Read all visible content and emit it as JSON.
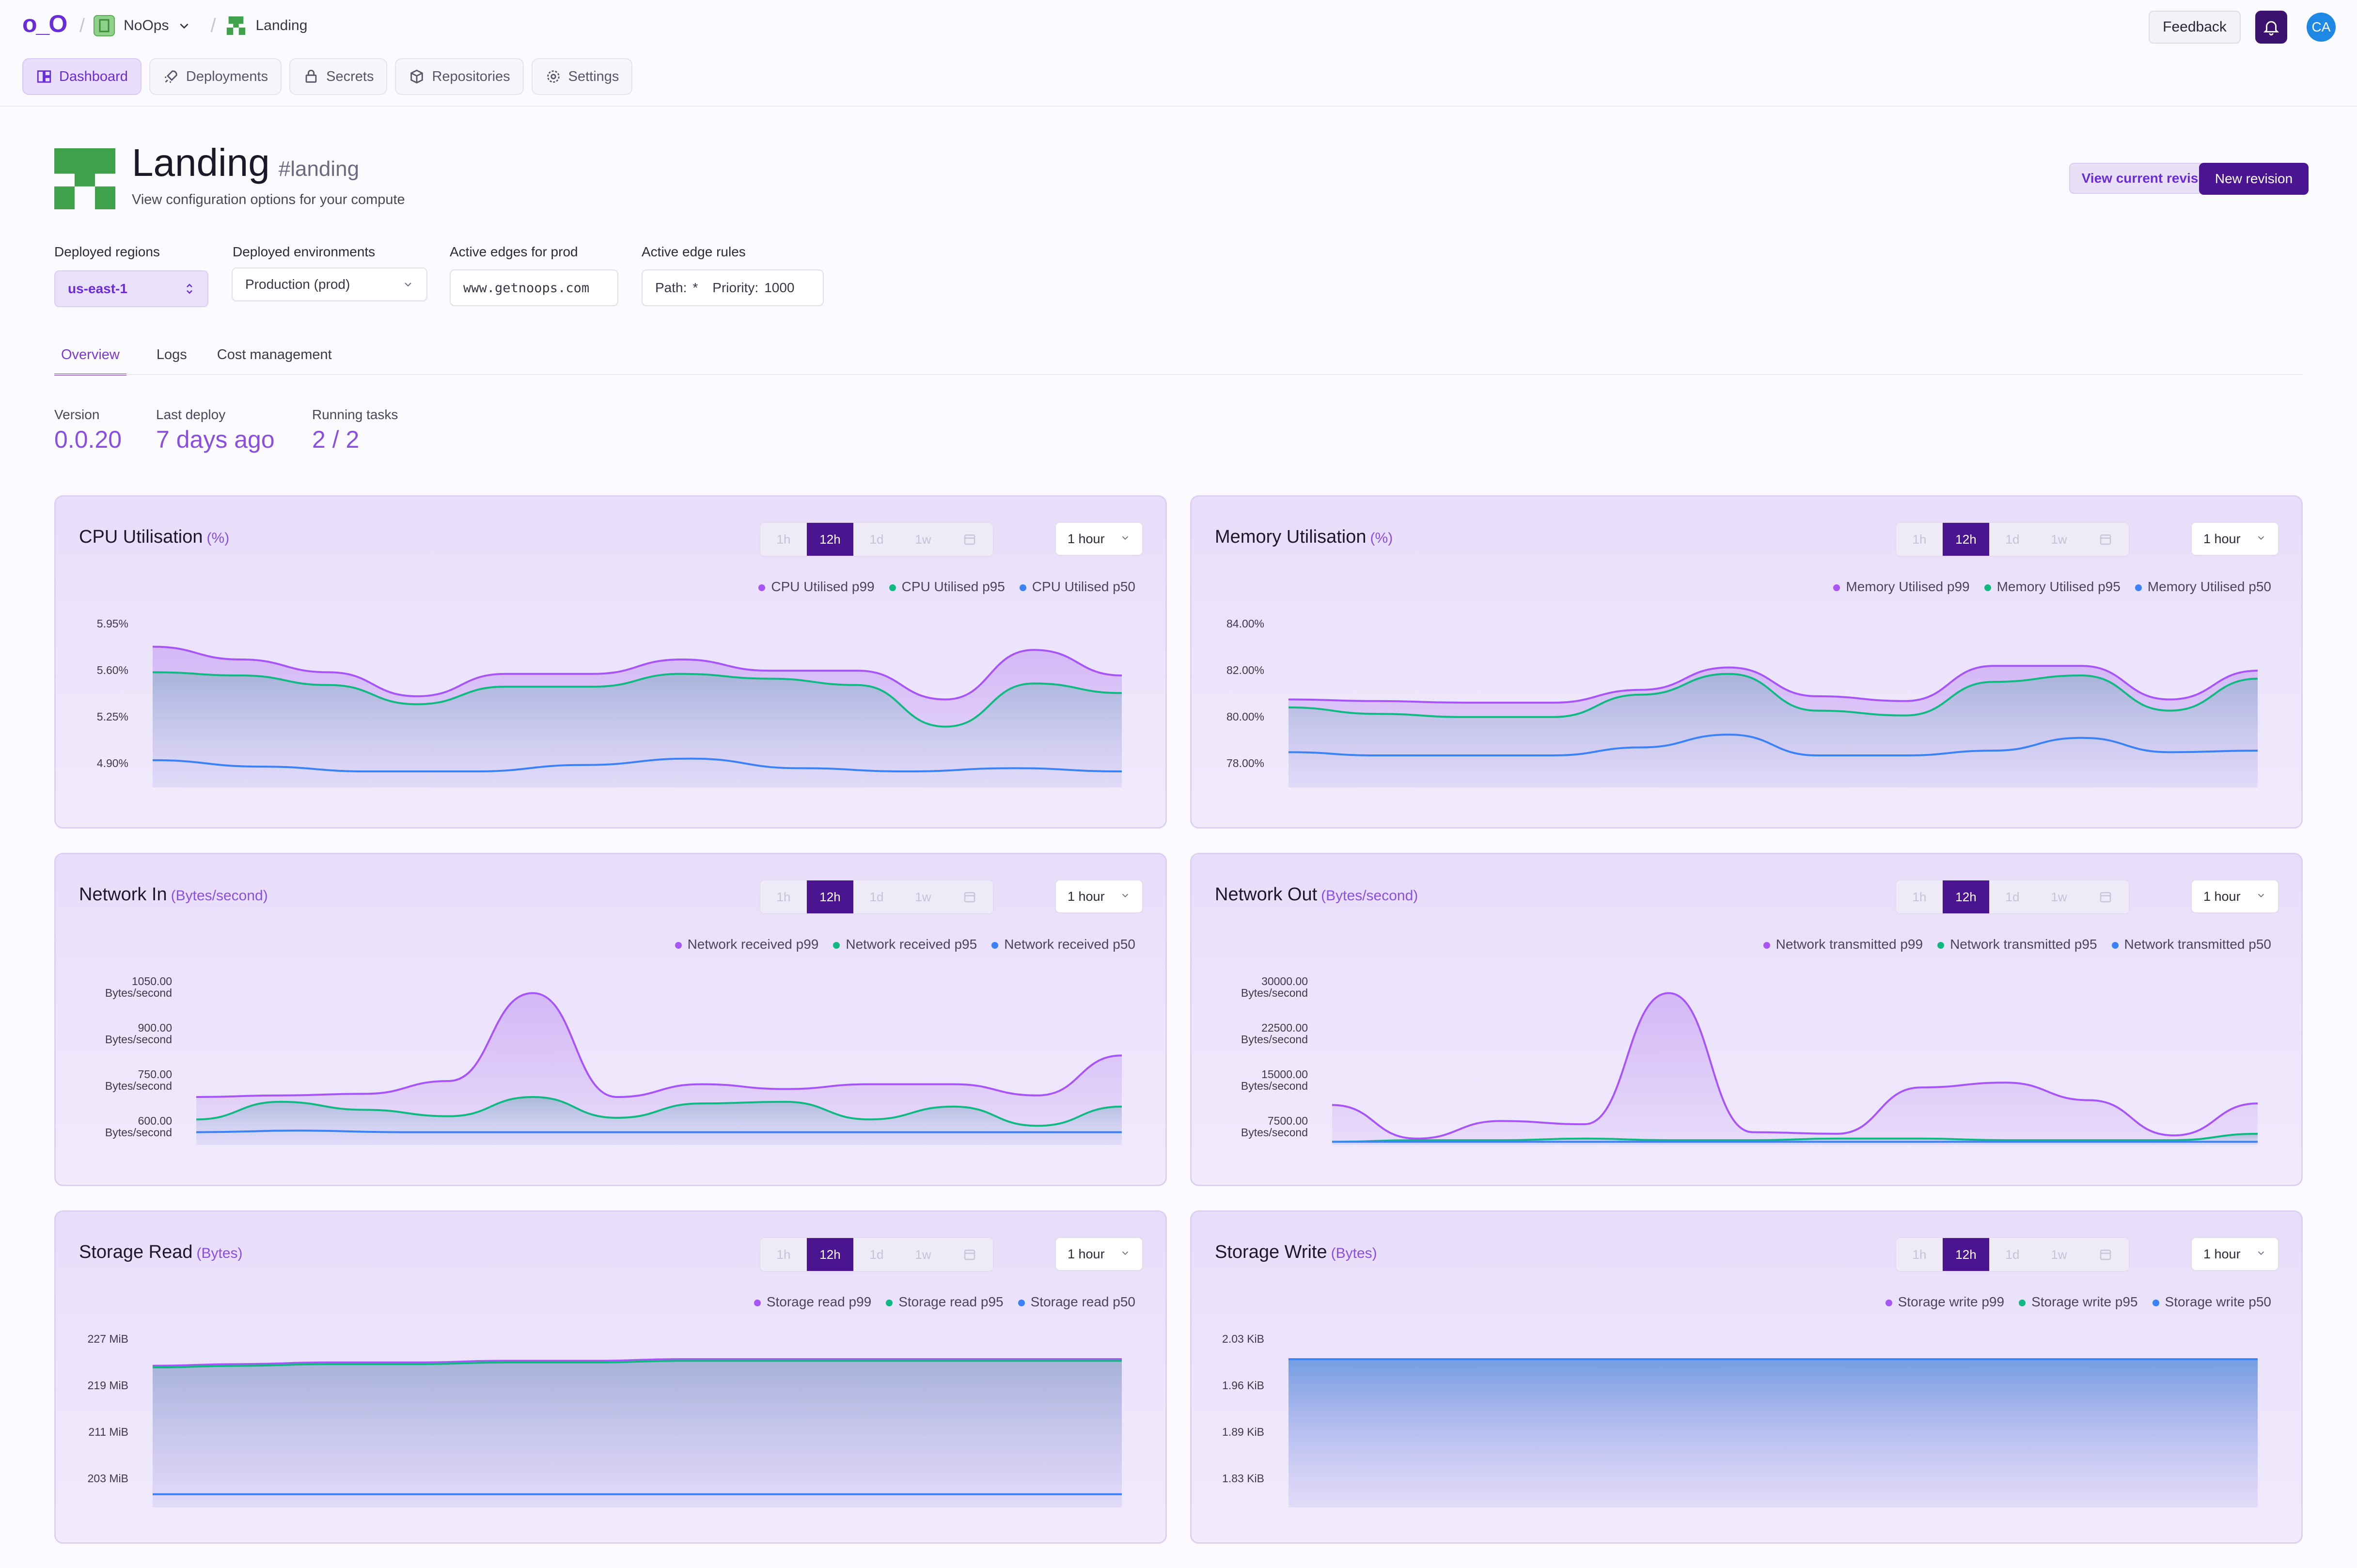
{
  "topbar": {
    "logo": "o_O",
    "org": "NoOps",
    "project": "Landing",
    "feedback": "Feedback",
    "avatar": "CA"
  },
  "nav": [
    {
      "label": "Dashboard",
      "icon": "dashboard-icon",
      "active": true
    },
    {
      "label": "Deployments",
      "icon": "rocket-icon",
      "active": false
    },
    {
      "label": "Secrets",
      "icon": "lock-icon",
      "active": false
    },
    {
      "label": "Repositories",
      "icon": "box-icon",
      "active": false
    },
    {
      "label": "Settings",
      "icon": "gear-icon",
      "active": false
    }
  ],
  "header": {
    "title": "Landing",
    "slug": "#landing",
    "subtitle": "View configuration options for your compute",
    "view_revision": "View current revision",
    "new_revision": "New revision"
  },
  "fields": {
    "regions_label": "Deployed regions",
    "region_value": "us-east-1",
    "env_label": "Deployed environments",
    "env_value": "Production (prod)",
    "edges_label": "Active edges for prod",
    "edges_value": "www.getnoops.com",
    "rules_label": "Active edge rules",
    "rules_path_label": "Path:",
    "rules_path_value": "*",
    "rules_priority_label": "Priority:",
    "rules_priority_value": "1000"
  },
  "subtabs": [
    "Overview",
    "Logs",
    "Cost management"
  ],
  "stats": [
    {
      "label": "Version",
      "value": "0.0.20"
    },
    {
      "label": "Last deploy",
      "value": "7 days ago"
    },
    {
      "label": "Running tasks",
      "value": "2 / 2"
    }
  ],
  "segments": [
    "1h",
    "12h",
    "1d",
    "1w"
  ],
  "range": "1 hour",
  "colors": {
    "p99": "#a855f7",
    "p95": "#10b981",
    "p50": "#3b82f6",
    "accent": "#6a2bd9"
  },
  "charts": [
    {
      "title": "CPU Utilisation",
      "unit": "(%)",
      "legend": [
        "CPU Utilised p99",
        "CPU Utilised p95",
        "CPU Utilised p50"
      ],
      "yticks": [
        "5.95%",
        "5.60%",
        "5.25%",
        "4.90%"
      ]
    },
    {
      "title": "Memory Utilisation",
      "unit": "(%)",
      "legend": [
        "Memory Utilised p99",
        "Memory Utilised p95",
        "Memory Utilised p50"
      ],
      "yticks": [
        "84.00%",
        "82.00%",
        "80.00%",
        "78.00%"
      ]
    },
    {
      "title": "Network In",
      "unit": "(Bytes/second)",
      "legend": [
        "Network received p99",
        "Network received p95",
        "Network received p50"
      ],
      "yticks": [
        "1050.00",
        "900.00",
        "750.00",
        "600.00"
      ],
      "ysub": "Bytes/second"
    },
    {
      "title": "Network Out",
      "unit": "(Bytes/second)",
      "legend": [
        "Network transmitted p99",
        "Network transmitted p95",
        "Network transmitted p50"
      ],
      "yticks": [
        "30000.00",
        "22500.00",
        "15000.00",
        "7500.00"
      ],
      "ysub": "Bytes/second"
    },
    {
      "title": "Storage Read",
      "unit": "(Bytes)",
      "legend": [
        "Storage read p99",
        "Storage read p95",
        "Storage read p50"
      ],
      "yticks": [
        "227 MiB",
        "219 MiB",
        "211 MiB",
        "203 MiB"
      ]
    },
    {
      "title": "Storage Write",
      "unit": "(Bytes)",
      "legend": [
        "Storage write p99",
        "Storage write p95",
        "Storage write p50"
      ],
      "yticks": [
        "2.03 KiB",
        "1.96 KiB",
        "1.89 KiB",
        "1.83 KiB"
      ]
    }
  ]
}
